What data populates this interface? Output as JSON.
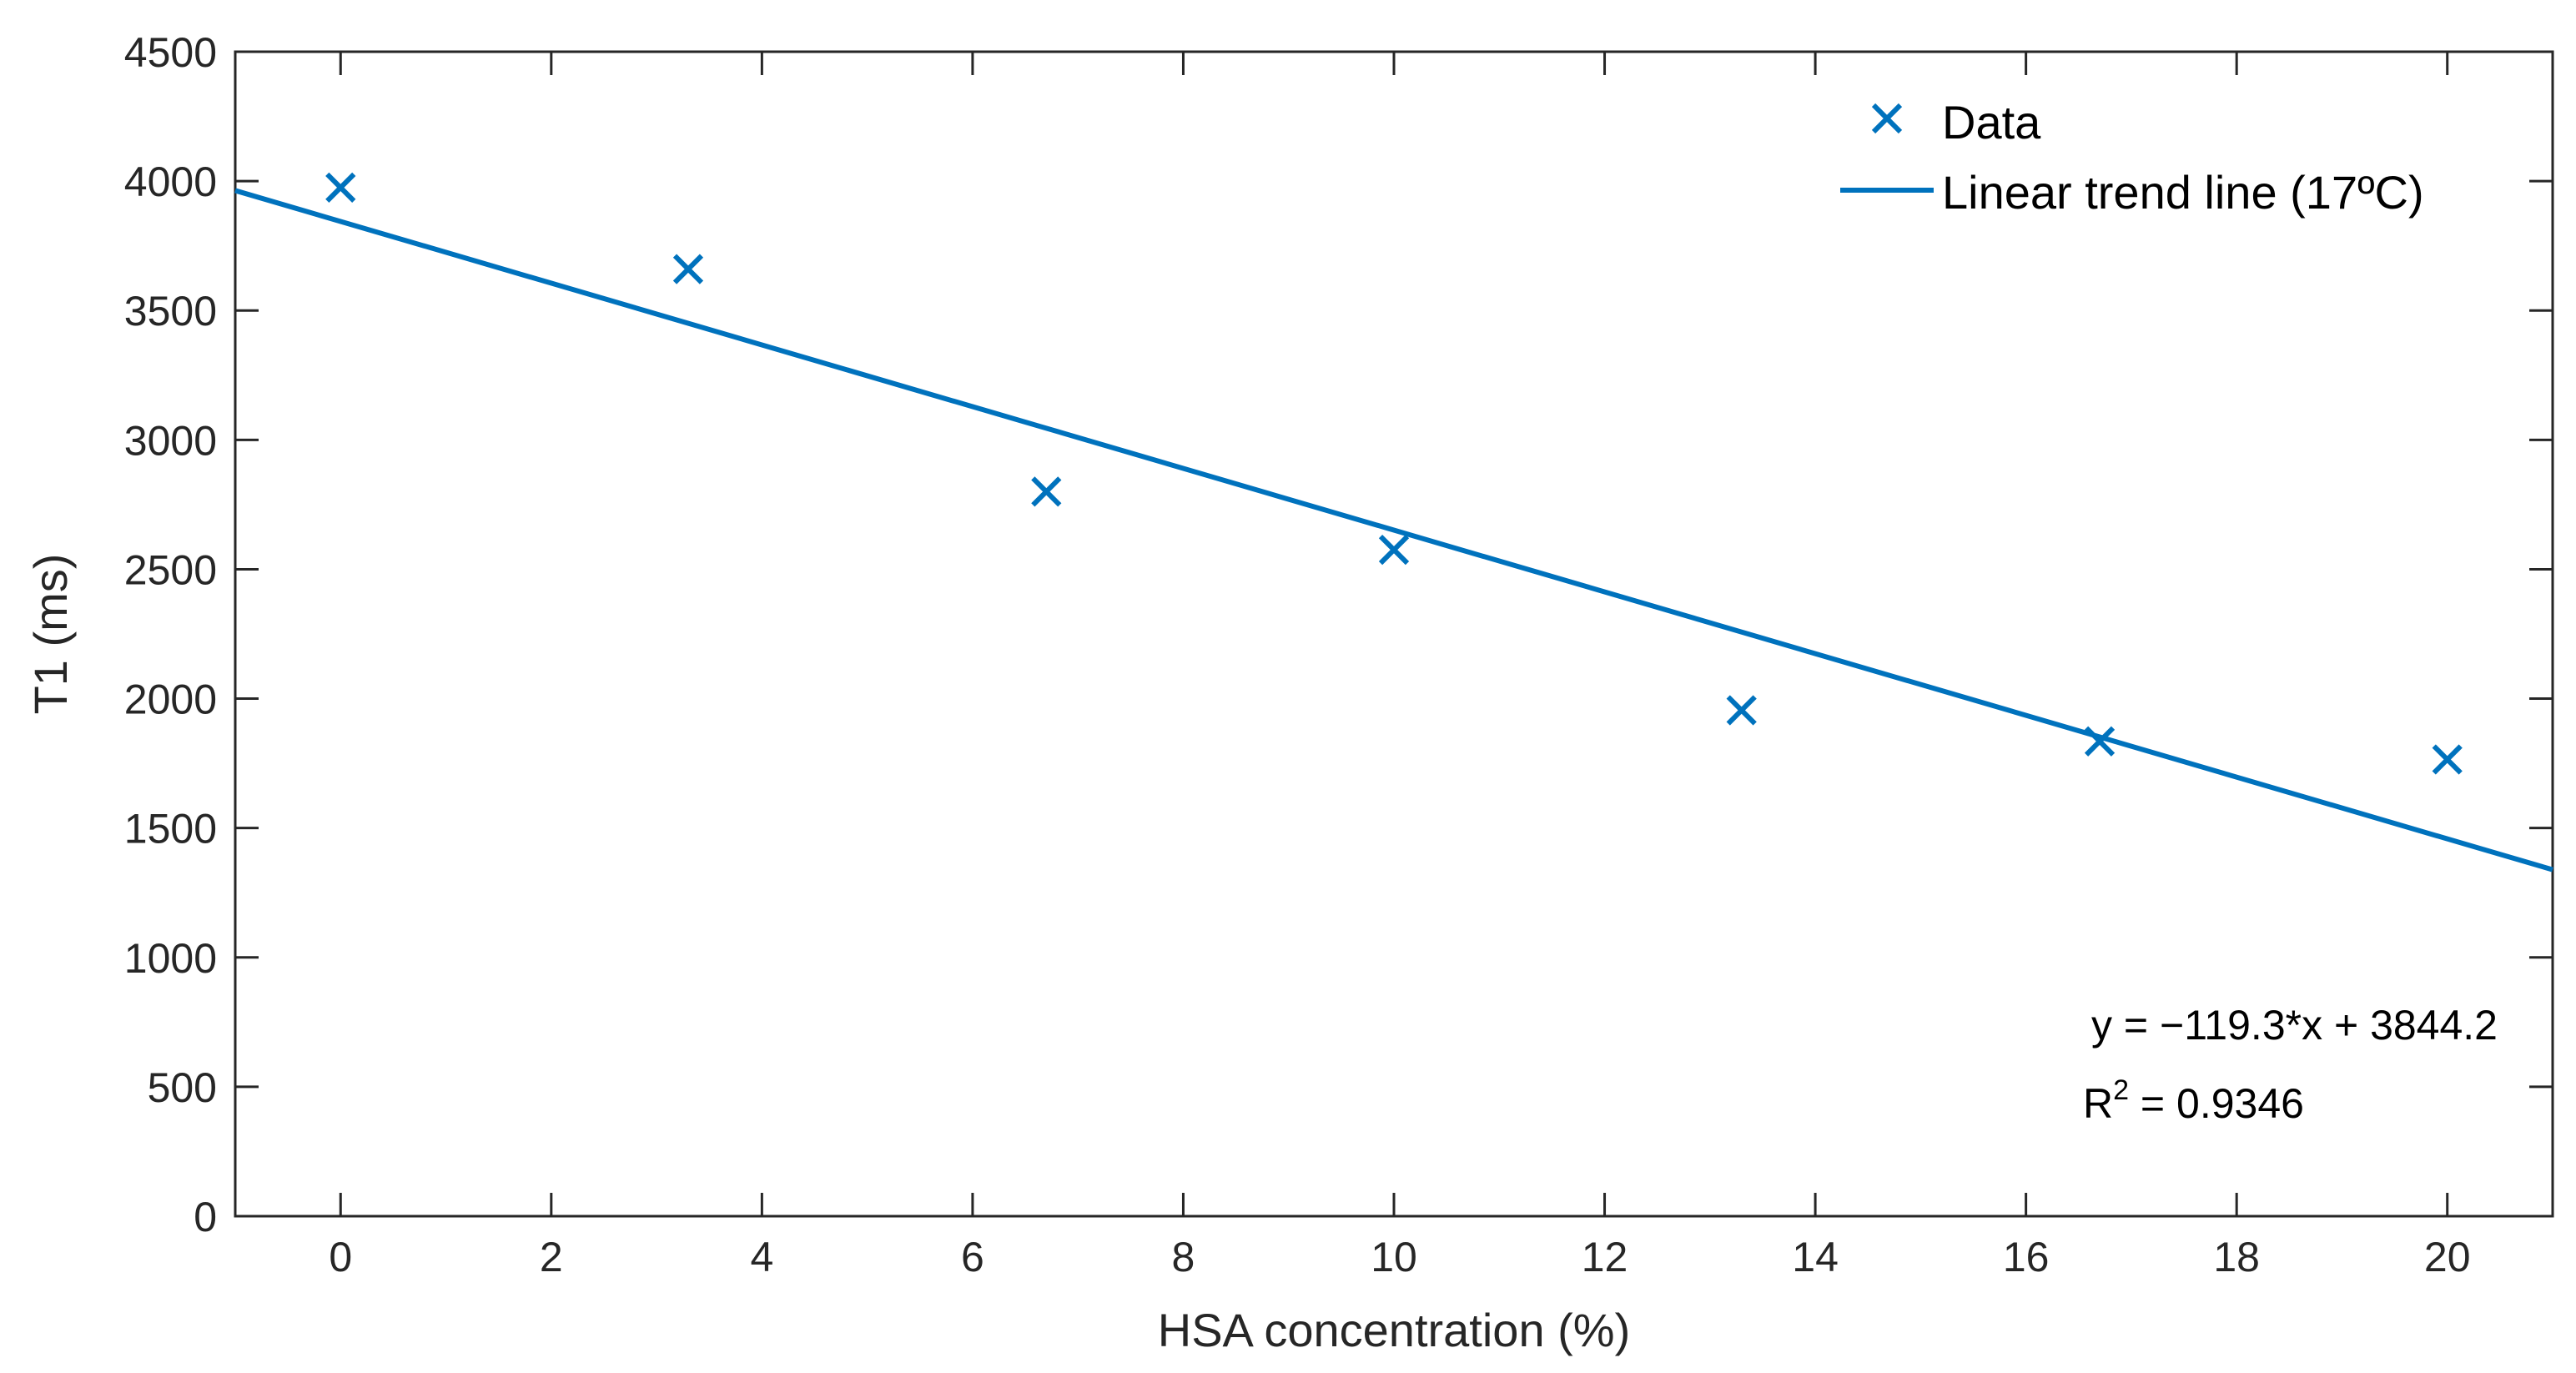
{
  "chart_data": {
    "type": "scatter",
    "title": "",
    "xlabel": "HSA concentration (%)",
    "ylabel": "T1 (ms)",
    "xlim": [
      -1,
      21
    ],
    "ylim": [
      0,
      4500
    ],
    "xticks": [
      0,
      2,
      4,
      6,
      8,
      10,
      12,
      14,
      16,
      18,
      20
    ],
    "yticks": [
      0,
      500,
      1000,
      1500,
      2000,
      2500,
      3000,
      3500,
      4000,
      4500
    ],
    "grid": false,
    "legend_position": "top-right",
    "series": [
      {
        "name": "Data",
        "kind": "scatter",
        "marker": "x",
        "color": "#0072BD",
        "x": [
          0,
          3.3,
          6.7,
          10,
          13.3,
          16.7,
          20
        ],
        "y": [
          3975,
          3660,
          2800,
          2575,
          1955,
          1835,
          1765
        ]
      },
      {
        "name": "Linear trend line (17ºC)",
        "kind": "line",
        "color": "#0072BD",
        "slope": -119.3,
        "intercept": 3844.2,
        "x_range": [
          -1,
          21
        ]
      }
    ],
    "annotations": {
      "equation": "y = −119.3*x + 3844.2",
      "r2_prefix": "R",
      "r2_sup": "2",
      "r2_value": " = 0.9346"
    }
  }
}
